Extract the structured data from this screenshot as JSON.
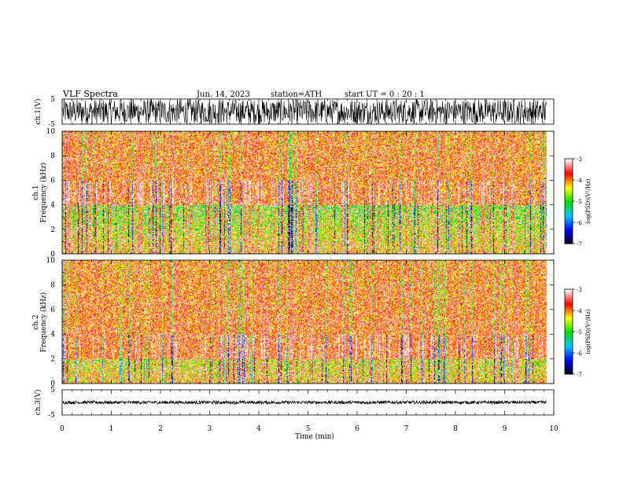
{
  "header": {
    "title": "VLF  Spectra",
    "date": "Jun. 14, 2023",
    "station": "station=ATH",
    "start_ut": "start  UT  =    0  : 20 : 1"
  },
  "chart_data": [
    {
      "type": "line",
      "name": "waveform-ch1",
      "ylabel": "ch.1(V)",
      "ylim": [
        -5,
        5
      ],
      "yticks": [
        "5",
        "-5"
      ],
      "xlim": [
        0,
        10
      ],
      "data_end_min": 9.85,
      "amplitude_range": [
        -5,
        5
      ],
      "color": "#000000"
    },
    {
      "type": "heatmap",
      "name": "spectrogram-ch1",
      "ylabel": "ch.1\nFrequency  (kHz)",
      "ylim": [
        0,
        10
      ],
      "yticks": [
        "0",
        "2",
        "4",
        "6",
        "8",
        "10"
      ],
      "xlim": [
        0,
        10
      ],
      "data_end_min": 9.85,
      "strong_band_khz": [
        0,
        4
      ],
      "colorbar": {
        "label": "log(PSD)(V²/Hz)",
        "range": [
          -7,
          -3
        ],
        "ticks": [
          "-3",
          "-4",
          "-5",
          "-6",
          "-7"
        ],
        "colors": [
          "#000000",
          "#0000ff",
          "#00c8ff",
          "#00e000",
          "#ffff00",
          "#ff0000",
          "#ffffff"
        ]
      }
    },
    {
      "type": "heatmap",
      "name": "spectrogram-ch2",
      "ylabel": "ch.2\nFrequency  (kHz)",
      "ylim": [
        0,
        10
      ],
      "yticks": [
        "0",
        "2",
        "4",
        "6",
        "8",
        "10"
      ],
      "xlim": [
        0,
        10
      ],
      "data_end_min": 9.85,
      "strong_band_khz": [
        0,
        2
      ],
      "colorbar": {
        "label": "log(PSD)(V²/Hz)",
        "range": [
          -7,
          -3
        ],
        "ticks": [
          "-3",
          "-4",
          "-5",
          "-6",
          "-7"
        ],
        "colors": [
          "#000000",
          "#0000ff",
          "#00c8ff",
          "#00e000",
          "#ffff00",
          "#ff0000",
          "#ffffff"
        ]
      }
    },
    {
      "type": "line",
      "name": "waveform-ch3",
      "ylabel": "ch.3(V)",
      "ylim": [
        -5,
        5
      ],
      "yticks": [
        "5",
        "-5"
      ],
      "xlim": [
        0,
        10
      ],
      "data_end_min": 9.85,
      "amplitude_range": [
        -0.6,
        0.6
      ],
      "color": "#000000"
    }
  ],
  "xaxis": {
    "label": "Time  (min)",
    "ticks": [
      "0",
      "1",
      "2",
      "3",
      "4",
      "5",
      "6",
      "7",
      "8",
      "9",
      "10"
    ]
  }
}
